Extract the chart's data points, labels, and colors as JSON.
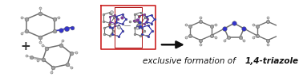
{
  "background_color": "#ffffff",
  "text_normal": "exclusive formation of ",
  "text_bold": "1,4-triazole",
  "text_fontsize": 7.5,
  "text_style": "italic",
  "arrow_color": "#111111",
  "figsize": [
    3.78,
    0.97
  ],
  "dpi": 100,
  "plus_text": "+",
  "plus_fontsize": 11,
  "C_color": "#a0a0a0",
  "N_color": "#3333cc",
  "H_color": "#d0d0d0",
  "bond_color": "#707070",
  "cage_color": "#cc2222",
  "cage_inner_color": "#8844aa"
}
